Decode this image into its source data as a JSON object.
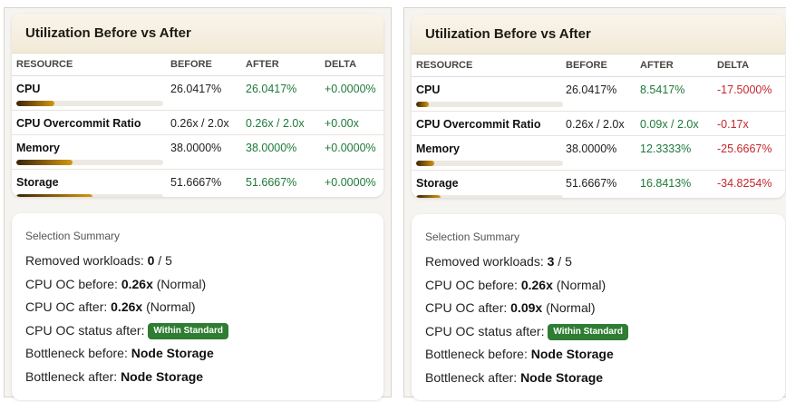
{
  "panels": [
    {
      "title": "Utilization Before vs After",
      "columns": [
        "RESOURCE",
        "BEFORE",
        "AFTER",
        "DELTA"
      ],
      "rows": {
        "cpu": {
          "name": "CPU",
          "before": "26.0417%",
          "after": "26.0417%",
          "delta": "+0.0000%",
          "delta_color": "#1e7a3a",
          "bar_percent": 26.0417
        },
        "oc": {
          "name": "CPU Overcommit Ratio",
          "before": "0.26x / 2.0x",
          "after": "0.26x / 2.0x",
          "delta": "+0.00x",
          "delta_color": "#1e7a3a"
        },
        "memory": {
          "name": "Memory",
          "before": "38.0000%",
          "after": "38.0000%",
          "delta": "+0.0000%",
          "delta_color": "#1e7a3a",
          "bar_percent": 38.0
        },
        "storage": {
          "name": "Storage",
          "before": "51.6667%",
          "after": "51.6667%",
          "delta": "+0.0000%",
          "delta_color": "#1e7a3a",
          "bar_percent": 51.6667
        }
      },
      "summary": {
        "title": "Selection Summary",
        "removed_label": "Removed workloads: ",
        "removed_value": "0",
        "removed_total": " / 5",
        "oc_before_label": "CPU OC before: ",
        "oc_before_value": "0.26x",
        "oc_before_note": " (Normal)",
        "oc_after_label": "CPU OC after: ",
        "oc_after_value": "0.26x",
        "oc_after_note": " (Normal)",
        "status_label": "CPU OC status after: ",
        "status_badge": "Within Standard",
        "bottleneck_before_label": "Bottleneck before: ",
        "bottleneck_before_value": "Node Storage",
        "bottleneck_after_label": "Bottleneck after: ",
        "bottleneck_after_value": "Node Storage"
      }
    },
    {
      "title": "Utilization Before vs After",
      "columns": [
        "RESOURCE",
        "BEFORE",
        "AFTER",
        "DELTA"
      ],
      "rows": {
        "cpu": {
          "name": "CPU",
          "before": "26.0417%",
          "after": "8.5417%",
          "delta": "-17.5000%",
          "delta_color": "#c6262e",
          "bar_percent": 8.5417
        },
        "oc": {
          "name": "CPU Overcommit Ratio",
          "before": "0.26x / 2.0x",
          "after": "0.09x / 2.0x",
          "delta": "-0.17x",
          "delta_color": "#c6262e"
        },
        "memory": {
          "name": "Memory",
          "before": "38.0000%",
          "after": "12.3333%",
          "delta": "-25.6667%",
          "delta_color": "#c6262e",
          "bar_percent": 12.3333
        },
        "storage": {
          "name": "Storage",
          "before": "51.6667%",
          "after": "16.8413%",
          "delta": "-34.8254%",
          "delta_color": "#c6262e",
          "bar_percent": 16.8413
        }
      },
      "summary": {
        "title": "Selection Summary",
        "removed_label": "Removed workloads: ",
        "removed_value": "3",
        "removed_total": " / 5",
        "oc_before_label": "CPU OC before: ",
        "oc_before_value": "0.26x",
        "oc_before_note": " (Normal)",
        "oc_after_label": "CPU OC after: ",
        "oc_after_value": "0.09x",
        "oc_after_note": " (Normal)",
        "status_label": "CPU OC status after: ",
        "status_badge": "Within Standard",
        "bottleneck_before_label": "Bottleneck before: ",
        "bottleneck_before_value": "Node Storage",
        "bottleneck_after_label": "Bottleneck after: ",
        "bottleneck_after_value": "Node Storage"
      }
    }
  ],
  "colors": {
    "positive": "#1e7a3a",
    "negative": "#c6262e",
    "badge": "#2e7d32",
    "bar_start": "#3a2405",
    "bar_end": "#d4970f"
  }
}
